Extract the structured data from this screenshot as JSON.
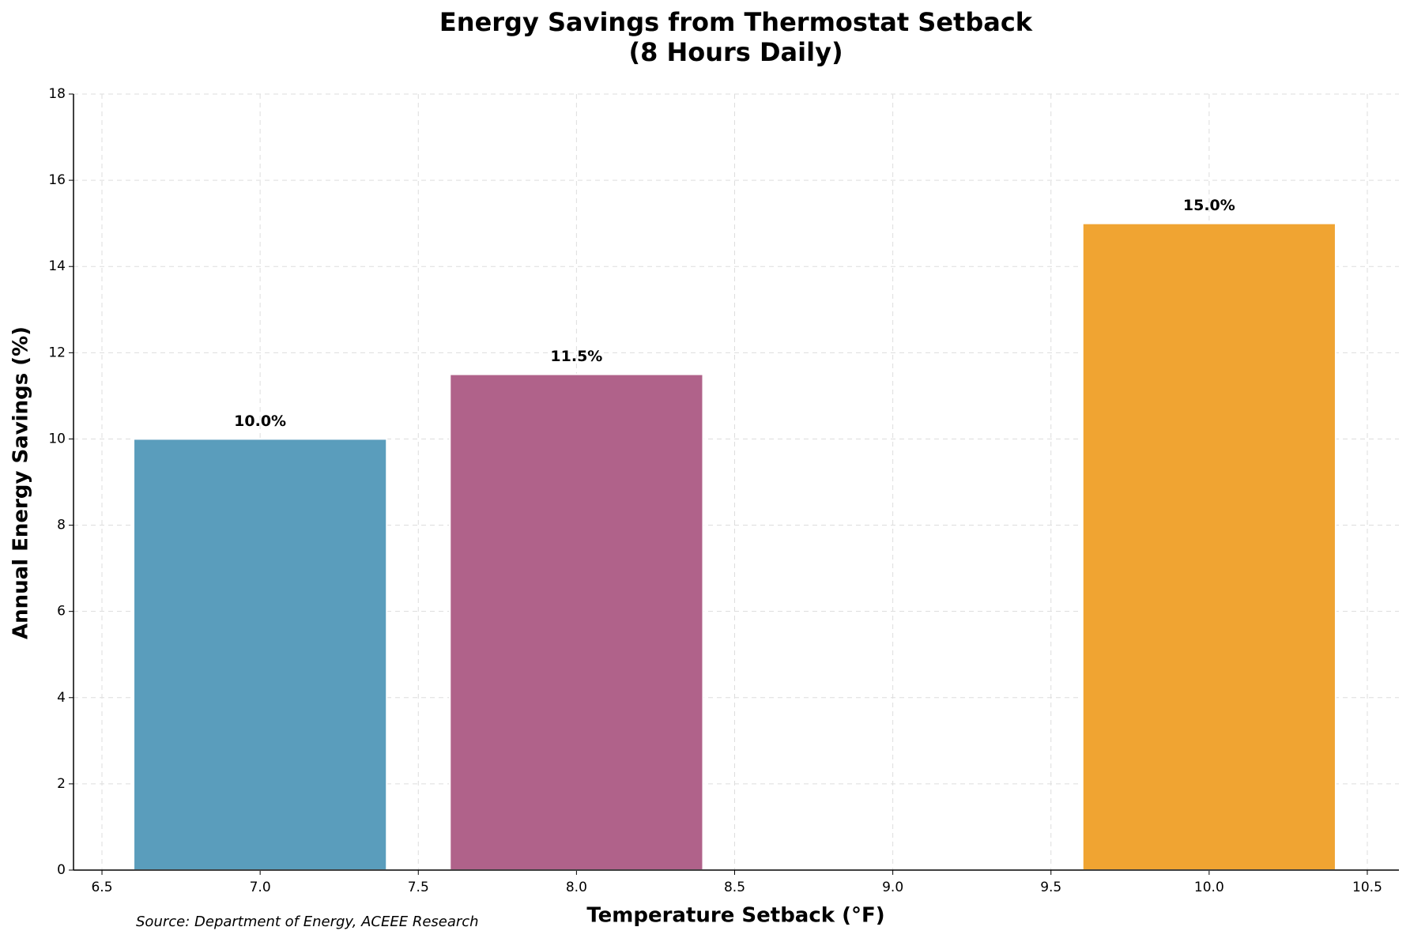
{
  "chart_data": {
    "type": "bar",
    "title": [
      "Energy Savings from Thermostat Setback",
      "(8 Hours Daily)"
    ],
    "x_label": "Temperature Setback (°F)",
    "y_label": "Annual Energy Savings (%)",
    "annotation": "Source: Department of Energy, ACEEE Research",
    "x": [
      7,
      8,
      10
    ],
    "values": [
      10,
      11.5,
      15
    ],
    "value_labels": [
      "10.0%",
      "11.5%",
      "15.0%"
    ],
    "colors": [
      "#5a9dbc",
      "#b0628a",
      "#f0a432"
    ],
    "xlim": [
      6.41,
      10.6
    ],
    "ylim": [
      0,
      18
    ],
    "xticks": [
      6.5,
      {
        "value": 7,
        "label": "7.0"
      },
      7.5,
      {
        "value": 8,
        "label": "8.0"
      },
      8.5,
      {
        "value": 9,
        "label": "9.0"
      },
      9.5,
      {
        "value": 10,
        "label": "10.0"
      },
      10.5
    ],
    "yticks": [
      0,
      2,
      4,
      6,
      8,
      10,
      12,
      14,
      16,
      18
    ],
    "grid": true
  }
}
